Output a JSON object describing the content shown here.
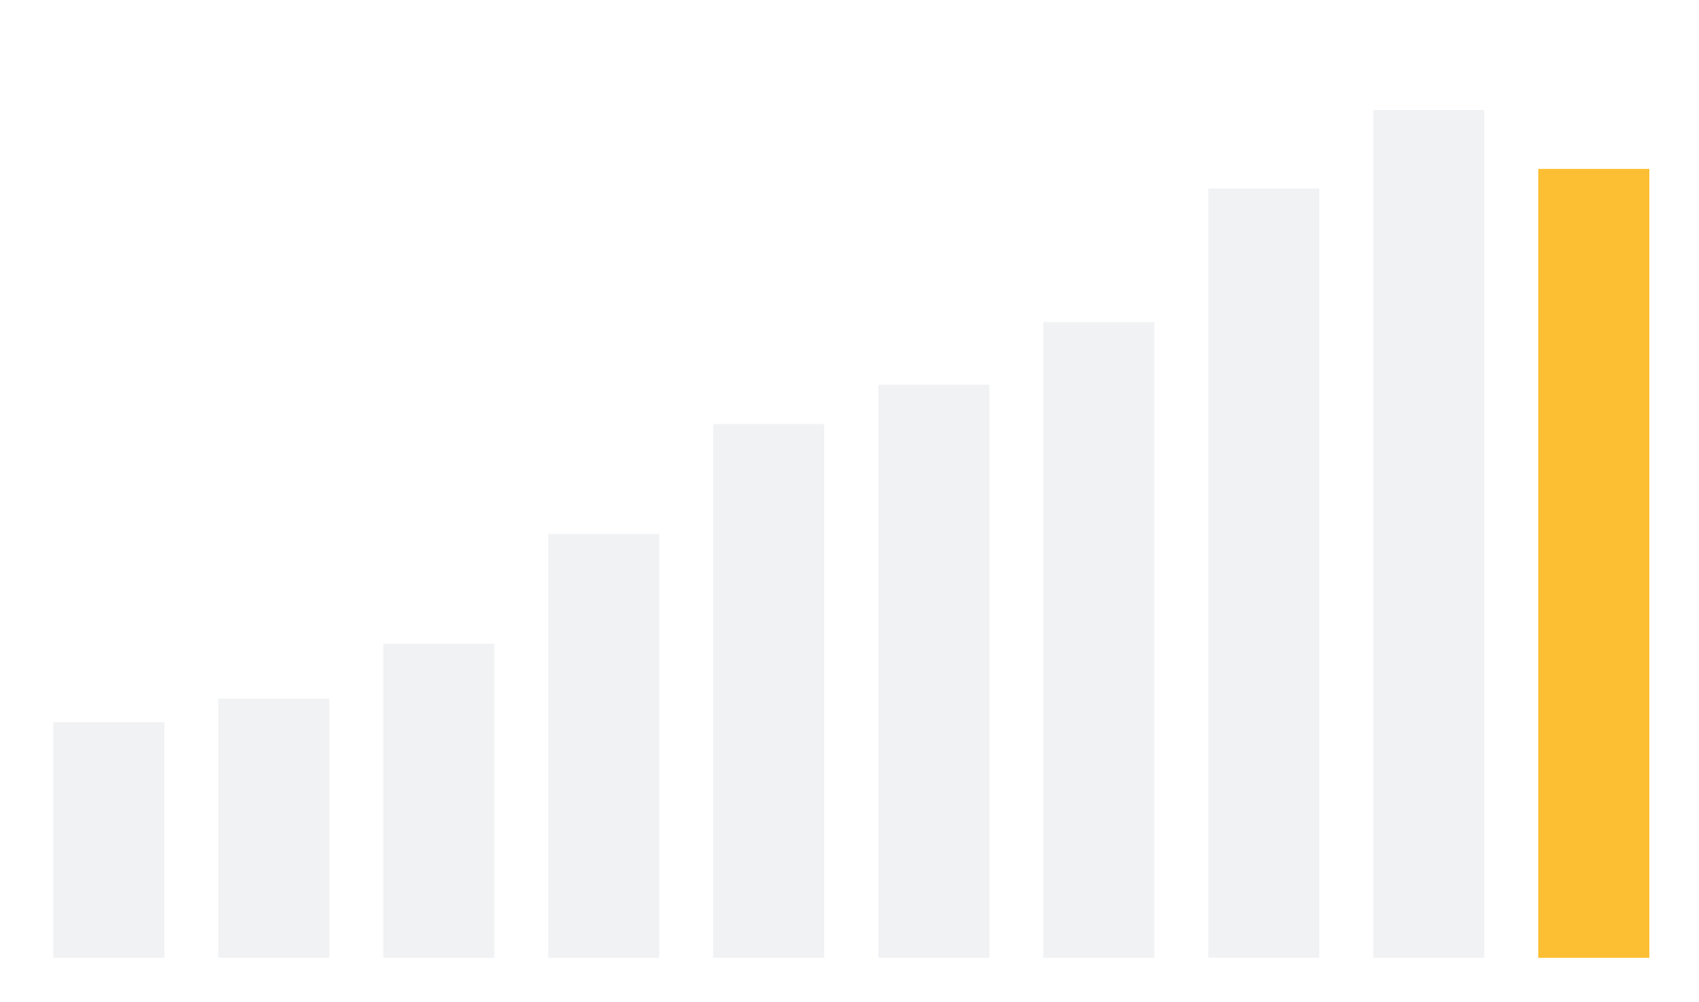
{
  "colors": {
    "background": "#ffffff",
    "bar_default": "#f1f2f4",
    "bar_highlight": "#fcbf33"
  },
  "chart_data": {
    "type": "bar",
    "categories": [
      "",
      "",
      "",
      "",
      "",
      "",
      "",
      "",
      "",
      ""
    ],
    "values": [
      30,
      33,
      40,
      54,
      68,
      73,
      81,
      98,
      108,
      100.5
    ],
    "highlight_index": 9,
    "title": "",
    "xlabel": "",
    "ylabel": "",
    "ylim": [
      0,
      115
    ],
    "grid": false,
    "axes_visible": false,
    "legend": "none"
  }
}
